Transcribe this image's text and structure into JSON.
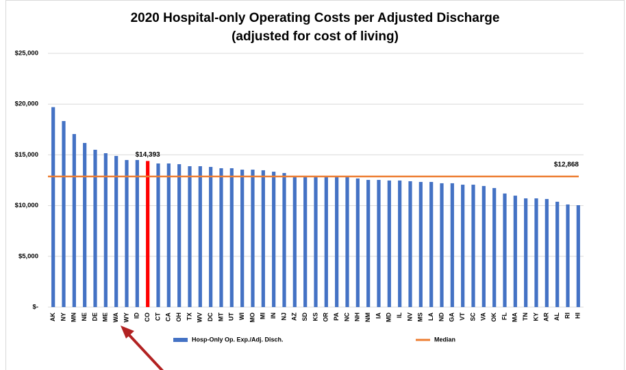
{
  "chart_data": {
    "type": "bar",
    "title": [
      "2020 Hospital-only Operating Costs per Adjusted Discharge",
      "(adjusted for cost of living)"
    ],
    "categories": [
      "AK",
      "NY",
      "MN",
      "NE",
      "DE",
      "ME",
      "WA",
      "WY",
      "ID",
      "CO",
      "CT",
      "CA",
      "OH",
      "TX",
      "WV",
      "DC",
      "MT",
      "UT",
      "WI",
      "MO",
      "MI",
      "IN",
      "NJ",
      "AZ",
      "SD",
      "KS",
      "OR",
      "PA",
      "NC",
      "NH",
      "NM",
      "IA",
      "MD",
      "IL",
      "NV",
      "MS",
      "LA",
      "ND",
      "GA",
      "VT",
      "SC",
      "VA",
      "OK",
      "FL",
      "MA",
      "TN",
      "KY",
      "AR",
      "AL",
      "RI",
      "HI"
    ],
    "series": [
      {
        "name": "Hosp-Only Op. Exp./Adj. Disch.",
        "color": "#4472c4",
        "values": [
          19700,
          18330,
          17050,
          16170,
          15500,
          15160,
          14890,
          14490,
          14490,
          14393,
          14150,
          14150,
          14080,
          13880,
          13880,
          13810,
          13680,
          13680,
          13540,
          13540,
          13480,
          13340,
          13210,
          12800,
          12800,
          12800,
          12800,
          12800,
          12800,
          12670,
          12530,
          12530,
          12470,
          12470,
          12400,
          12330,
          12330,
          12200,
          12200,
          12060,
          12060,
          11930,
          11730,
          11190,
          10980,
          10710,
          10710,
          10650,
          10380,
          10110,
          10040
        ],
        "point_colors": [
          "#4472c4",
          "#4472c4",
          "#4472c4",
          "#4472c4",
          "#4472c4",
          "#4472c4",
          "#4472c4",
          "#4472c4",
          "#4472c4",
          "#ff0000",
          "#4472c4",
          "#4472c4",
          "#4472c4",
          "#4472c4",
          "#4472c4",
          "#4472c4",
          "#4472c4",
          "#4472c4",
          "#4472c4",
          "#4472c4",
          "#4472c4",
          "#4472c4",
          "#4472c4",
          "#4472c4",
          "#4472c4",
          "#4472c4",
          "#4472c4",
          "#4472c4",
          "#4472c4",
          "#4472c4",
          "#4472c4",
          "#4472c4",
          "#4472c4",
          "#4472c4",
          "#4472c4",
          "#4472c4",
          "#4472c4",
          "#4472c4",
          "#4472c4",
          "#4472c4",
          "#4472c4",
          "#4472c4",
          "#4472c4",
          "#4472c4",
          "#4472c4",
          "#4472c4",
          "#4472c4",
          "#4472c4",
          "#4472c4",
          "#4472c4",
          "#4472c4"
        ],
        "value_labels": [
          null,
          null,
          null,
          null,
          null,
          null,
          null,
          null,
          null,
          "$14,393",
          null,
          null,
          null,
          null,
          null,
          null,
          null,
          null,
          null,
          null,
          null,
          null,
          null,
          null,
          null,
          null,
          null,
          null,
          null,
          null,
          null,
          null,
          null,
          null,
          null,
          null,
          null,
          null,
          null,
          null,
          null,
          null,
          null,
          null,
          null,
          null,
          null,
          null,
          null,
          null,
          null
        ]
      }
    ],
    "reference_line": {
      "name": "Median",
      "value": 12868,
      "label": "$12,868",
      "color": "#ed7d31"
    },
    "ylim": [
      0,
      25000
    ],
    "yticks": [
      {
        "value": 0,
        "label": "$-"
      },
      {
        "value": 5000,
        "label": "$5,000"
      },
      {
        "value": 10000,
        "label": "$10,000"
      },
      {
        "value": 15000,
        "label": "$15,000"
      },
      {
        "value": 20000,
        "label": "$20,000"
      },
      {
        "value": 25000,
        "label": "$25,000"
      }
    ],
    "grid": true,
    "legend": "bottom"
  }
}
